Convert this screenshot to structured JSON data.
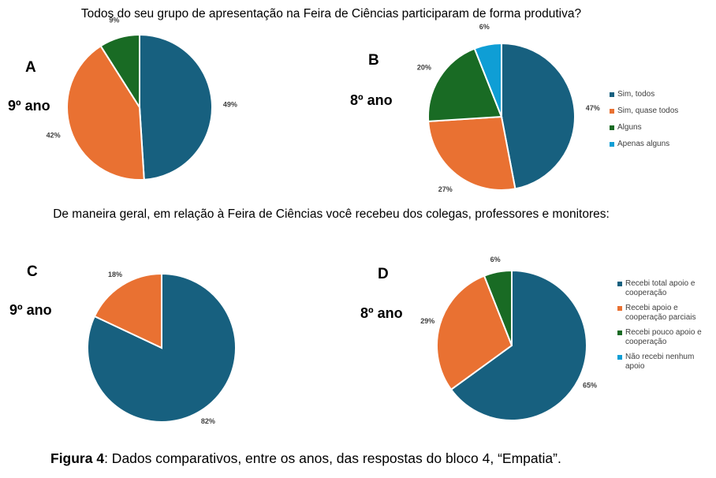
{
  "questions": {
    "q1": "Todos do seu grupo de apresentação na Feira de Ciências participaram de forma produtiva?",
    "q2": "De maneira geral, em relação à Feira de Ciências você recebeu dos colegas, professores e monitores:"
  },
  "caption": {
    "bold": "Figura 4",
    "text": ": Dados comparativos, entre os anos, das respostas do  bloco 4, “Empatia”."
  },
  "colors": {
    "blue": "#17607f",
    "orange": "#e97132",
    "green": "#196b24",
    "cyan": "#0f9ed5"
  },
  "legends": {
    "top": [
      "Sim, todos",
      "Sim, quase todos",
      "Alguns",
      "Apenas alguns"
    ],
    "bottom": [
      "Recebi total apoio e cooperação",
      "Recebi apoio e cooperação parciais",
      "Recebi pouco apoio e cooperação",
      "Não recebi nenhum apoio"
    ]
  },
  "chart_data": [
    {
      "type": "pie",
      "panel": "A",
      "group": "9º ano",
      "categories": [
        "Sim, todos",
        "Sim, quase todos",
        "Alguns"
      ],
      "values": [
        49,
        42,
        9
      ],
      "labels": [
        "49%",
        "42%",
        "9%"
      ]
    },
    {
      "type": "pie",
      "panel": "B",
      "group": "8º ano",
      "categories": [
        "Sim, todos",
        "Sim, quase todos",
        "Alguns",
        "Apenas alguns"
      ],
      "values": [
        47,
        27,
        20,
        6
      ],
      "labels": [
        "47%",
        "27%",
        "20%",
        "6%"
      ]
    },
    {
      "type": "pie",
      "panel": "C",
      "group": "9º ano",
      "categories": [
        "Recebi total apoio e cooperação",
        "Recebi apoio e cooperação parciais"
      ],
      "values": [
        82,
        18
      ],
      "labels": [
        "82%",
        "18%"
      ]
    },
    {
      "type": "pie",
      "panel": "D",
      "group": "8º ano",
      "categories": [
        "Recebi total apoio e cooperação",
        "Recebi apoio e cooperação parciais",
        "Recebi pouco apoio e cooperação"
      ],
      "values": [
        65,
        29,
        6
      ],
      "labels": [
        "65%",
        "29%",
        "6%"
      ]
    }
  ]
}
